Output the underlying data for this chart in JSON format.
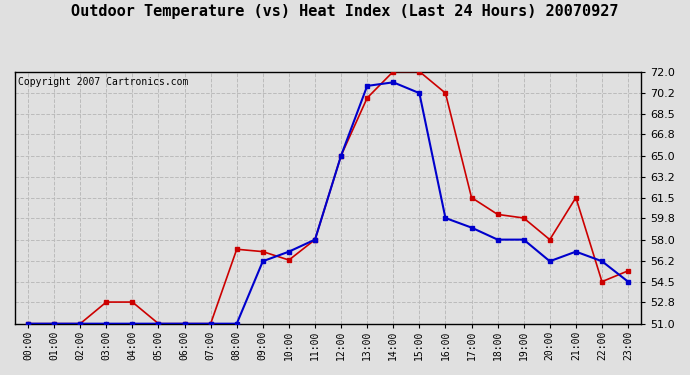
{
  "title": "Outdoor Temperature (vs) Heat Index (Last 24 Hours) 20070927",
  "copyright": "Copyright 2007 Cartronics.com",
  "hours": [
    "00:00",
    "01:00",
    "02:00",
    "03:00",
    "04:00",
    "05:00",
    "06:00",
    "07:00",
    "08:00",
    "09:00",
    "10:00",
    "11:00",
    "12:00",
    "13:00",
    "14:00",
    "15:00",
    "16:00",
    "17:00",
    "18:00",
    "19:00",
    "20:00",
    "21:00",
    "22:00",
    "23:00"
  ],
  "temp": [
    51.0,
    51.0,
    51.0,
    52.8,
    52.8,
    51.0,
    51.0,
    51.0,
    57.2,
    57.0,
    56.3,
    58.0,
    65.0,
    69.8,
    72.0,
    72.0,
    70.2,
    61.5,
    60.1,
    59.8,
    58.0,
    61.5,
    54.5,
    55.4
  ],
  "heat_index": [
    51.0,
    51.0,
    51.0,
    51.0,
    51.0,
    51.0,
    51.0,
    51.0,
    51.0,
    56.2,
    57.0,
    58.0,
    65.0,
    70.8,
    71.1,
    70.2,
    59.8,
    59.0,
    58.0,
    58.0,
    56.2,
    57.0,
    56.2,
    54.5
  ],
  "ylim": [
    51.0,
    72.0
  ],
  "yticks": [
    51.0,
    52.8,
    54.5,
    56.2,
    58.0,
    59.8,
    61.5,
    63.2,
    65.0,
    66.8,
    68.5,
    70.2,
    72.0
  ],
  "temp_color": "#cc0000",
  "heat_index_color": "#0000cc",
  "grid_color": "#bbbbbb",
  "bg_color": "#e0e0e0",
  "plot_bg_color": "#e0e0e0",
  "title_fontsize": 11,
  "copyright_fontsize": 7
}
